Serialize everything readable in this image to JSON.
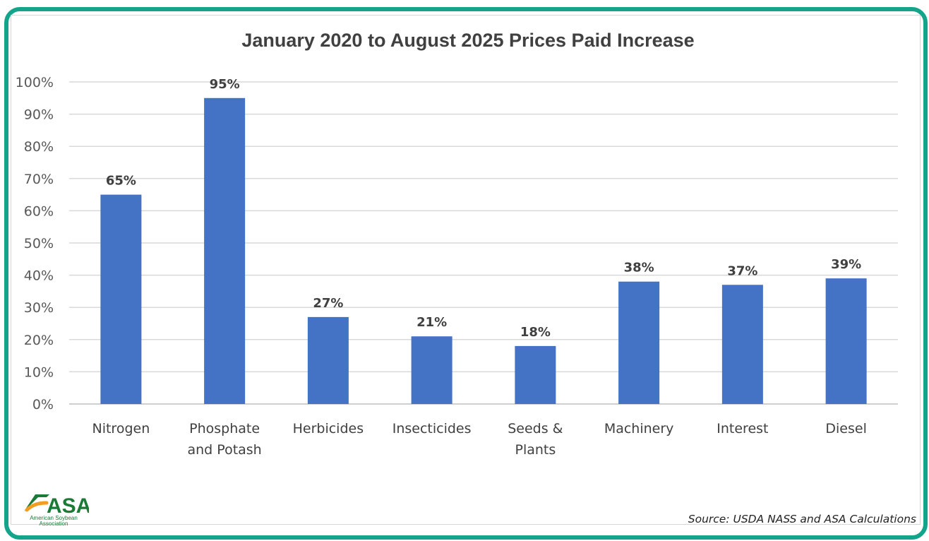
{
  "chart_data": {
    "type": "bar",
    "title": "January 2020 to August 2025 Prices Paid Increase",
    "categories": [
      [
        "Nitrogen"
      ],
      [
        "Phosphate",
        "and Potash"
      ],
      [
        "Herbicides"
      ],
      [
        "Insecticides"
      ],
      [
        "Seeds &",
        "Plants"
      ],
      [
        "Machinery"
      ],
      [
        "Interest"
      ],
      [
        "Diesel"
      ]
    ],
    "values": [
      65,
      95,
      27,
      21,
      18,
      38,
      37,
      39
    ],
    "data_labels": [
      "65%",
      "95%",
      "27%",
      "21%",
      "18%",
      "38%",
      "37%",
      "39%"
    ],
    "ylim": [
      0,
      100
    ],
    "yticks": [
      "0%",
      "10%",
      "20%",
      "30%",
      "40%",
      "50%",
      "60%",
      "70%",
      "80%",
      "90%",
      "100%"
    ],
    "grid": true,
    "bar_color": "#4472c4",
    "xlabel": "",
    "ylabel": ""
  },
  "footer": {
    "source": "Source: USDA NASS and ASA Calculations",
    "logo_text": "ASA",
    "logo_subtext": "American Soybean Association"
  },
  "colors": {
    "frame": "#14a38b",
    "logo_green": "#1a7a36",
    "logo_orange": "#f39c1f"
  }
}
